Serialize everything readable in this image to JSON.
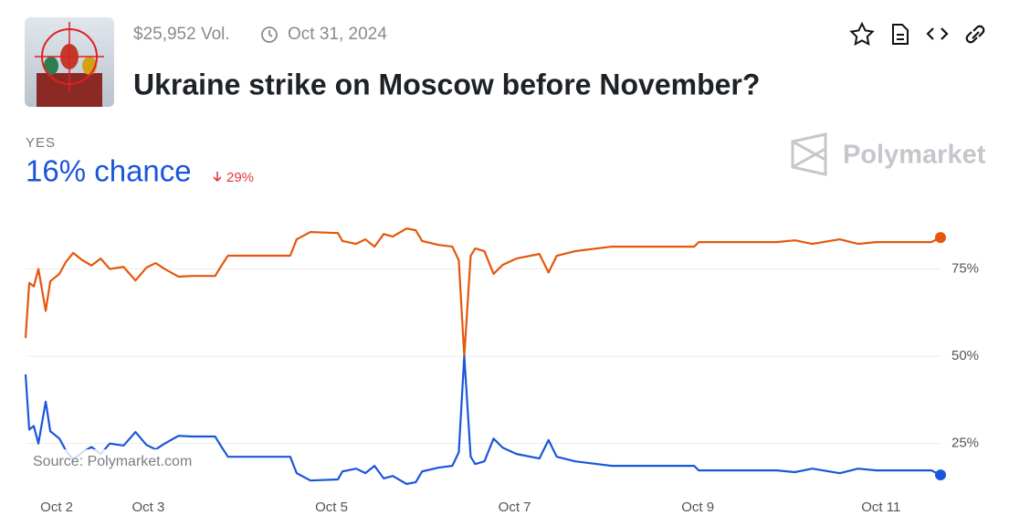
{
  "header": {
    "volume": "$25,952 Vol.",
    "date": "Oct 31, 2024",
    "title": "Ukraine strike on Moscow before November?"
  },
  "outcome": {
    "label": "YES",
    "chance": "16% chance",
    "change": "29%"
  },
  "brand": "Polymarket",
  "source": "Source: Polymarket.com",
  "chart_data": {
    "type": "line",
    "x": [
      1.66,
      1.7,
      1.75,
      1.8,
      1.88,
      1.93,
      2.03,
      2.1,
      2.18,
      2.28,
      2.38,
      2.48,
      2.58,
      2.73,
      2.86,
      2.98,
      3.08,
      3.18,
      3.33,
      3.48,
      3.73,
      3.8,
      3.87,
      4.37,
      4.55,
      4.62,
      4.77,
      5.07,
      5.12,
      5.27,
      5.37,
      5.47,
      5.57,
      5.67,
      5.82,
      5.92,
      5.99,
      6.17,
      6.32,
      6.39,
      6.45,
      6.52,
      6.57,
      6.67,
      6.77,
      6.87,
      7.02,
      7.27,
      7.37,
      7.46,
      7.66,
      8.06,
      8.26,
      8.96,
      9.01,
      9.86,
      10.06,
      10.25,
      10.55,
      10.75,
      10.95,
      11.25,
      11.55,
      11.65
    ],
    "xlim": [
      1.66,
      11.65
    ],
    "xticks": [
      {
        "value": 2,
        "label": "Oct 2"
      },
      {
        "value": 3,
        "label": "Oct 3"
      },
      {
        "value": 5,
        "label": "Oct 5"
      },
      {
        "value": 7,
        "label": "Oct 7"
      },
      {
        "value": 9,
        "label": "Oct 9"
      },
      {
        "value": 11,
        "label": "Oct 11"
      }
    ],
    "ylim": [
      10,
      100
    ],
    "yticks": [
      {
        "value": 25,
        "label": "25%"
      },
      {
        "value": 50,
        "label": "50%"
      },
      {
        "value": 75,
        "label": "75%"
      }
    ],
    "grid": true,
    "series": [
      {
        "color": "#e4570c",
        "values": [
          55.2,
          71,
          70,
          75,
          63,
          71.5,
          73.6,
          77,
          79.6,
          77.5,
          76,
          78,
          75,
          75.6,
          71.7,
          75.4,
          76.7,
          75,
          72.8,
          73,
          73,
          76,
          78.8,
          78.8,
          78.8,
          83.5,
          85.6,
          85.3,
          83,
          82.2,
          83.5,
          81.4,
          85,
          84.3,
          86.6,
          86.1,
          83,
          81.9,
          81.4,
          77.5,
          50,
          78.8,
          80.9,
          80.1,
          73.6,
          76.2,
          78,
          79.3,
          74,
          78.8,
          80.1,
          81.4,
          81.4,
          81.4,
          82.7,
          82.7,
          83.2,
          82.2,
          83.5,
          82.2,
          82.7,
          82.7,
          82.7,
          84
        ]
      },
      {
        "color": "#1a56db",
        "values": [
          44.8,
          29,
          30,
          25,
          37,
          28.5,
          26.4,
          23,
          20.4,
          22.5,
          24,
          22,
          25,
          24.4,
          28.3,
          24.6,
          23.3,
          25,
          27.2,
          27,
          27,
          24,
          21.2,
          21.2,
          21.2,
          16.5,
          14.4,
          14.7,
          17,
          17.8,
          16.5,
          18.6,
          15,
          15.7,
          13.4,
          13.9,
          17,
          18.1,
          18.6,
          22.5,
          50,
          21.2,
          19.1,
          19.9,
          26.4,
          23.8,
          22,
          20.7,
          26,
          21.2,
          19.9,
          18.6,
          18.6,
          18.6,
          17.3,
          17.3,
          16.8,
          17.8,
          16.5,
          17.8,
          17.3,
          17.3,
          17.3,
          16
        ]
      }
    ]
  }
}
